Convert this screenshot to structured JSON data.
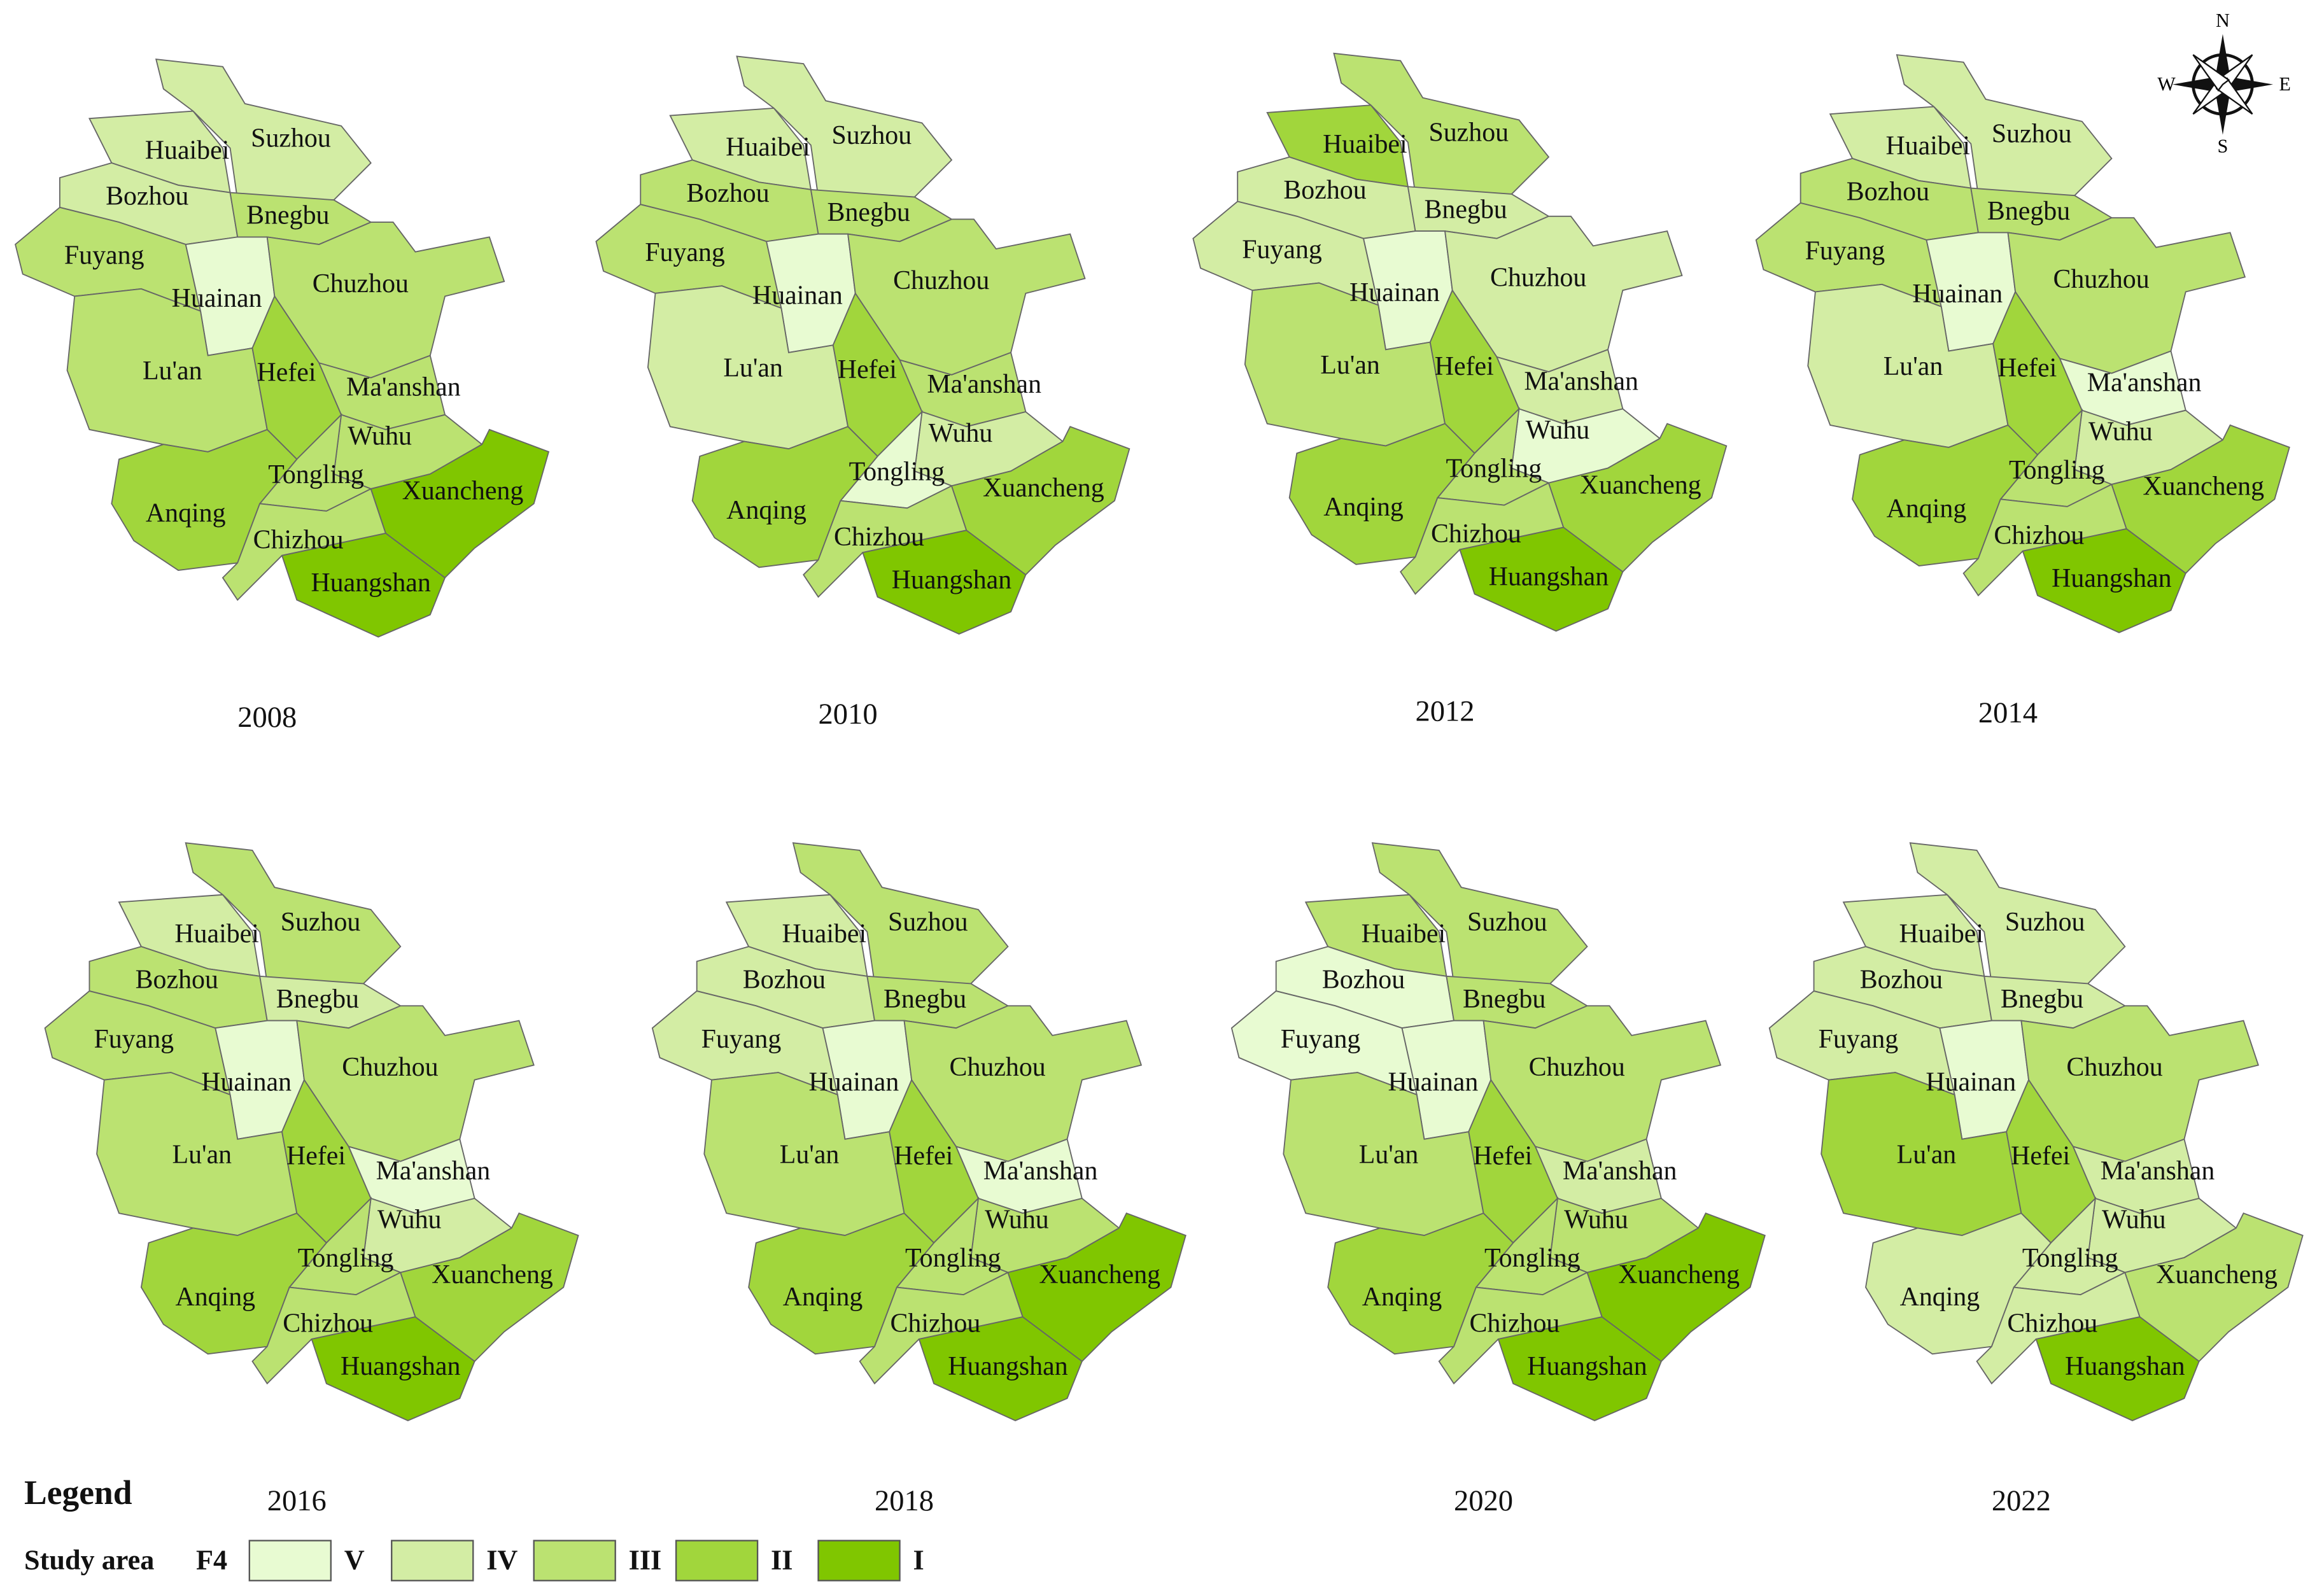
{
  "maps": [
    {
      "year": "2008",
      "regions": [
        {
          "name": "Huaibei",
          "class": "IV"
        },
        {
          "name": "Suzhou",
          "class": "IV"
        },
        {
          "name": "Bozhou",
          "class": "IV"
        },
        {
          "name": "Fuyang",
          "class": "III"
        },
        {
          "name": "Bnegbu",
          "class": "III"
        },
        {
          "name": "Huainan",
          "class": "V"
        },
        {
          "name": "Chuzhou",
          "class": "III"
        },
        {
          "name": "Lu'an",
          "class": "III"
        },
        {
          "name": "Hefei",
          "class": "II"
        },
        {
          "name": "Ma'anshan",
          "class": "III"
        },
        {
          "name": "Wuhu",
          "class": "III"
        },
        {
          "name": "Tongling",
          "class": "III"
        },
        {
          "name": "Anqing",
          "class": "II"
        },
        {
          "name": "Chizhou",
          "class": "III"
        },
        {
          "name": "Xuancheng",
          "class": "I"
        },
        {
          "name": "Huangshan",
          "class": "I"
        }
      ]
    },
    {
      "year": "2010",
      "regions": [
        {
          "name": "Huaibei",
          "class": "IV"
        },
        {
          "name": "Suzhou",
          "class": "IV"
        },
        {
          "name": "Bozhou",
          "class": "III"
        },
        {
          "name": "Fuyang",
          "class": "III"
        },
        {
          "name": "Bnegbu",
          "class": "III"
        },
        {
          "name": "Huainan",
          "class": "V"
        },
        {
          "name": "Chuzhou",
          "class": "III"
        },
        {
          "name": "Lu'an",
          "class": "IV"
        },
        {
          "name": "Hefei",
          "class": "II"
        },
        {
          "name": "Ma'anshan",
          "class": "III"
        },
        {
          "name": "Wuhu",
          "class": "IV"
        },
        {
          "name": "Tongling",
          "class": "V"
        },
        {
          "name": "Anqing",
          "class": "II"
        },
        {
          "name": "Chizhou",
          "class": "III"
        },
        {
          "name": "Xuancheng",
          "class": "II"
        },
        {
          "name": "Huangshan",
          "class": "I"
        }
      ]
    },
    {
      "year": "2012",
      "regions": [
        {
          "name": "Huaibei",
          "class": "II"
        },
        {
          "name": "Suzhou",
          "class": "III"
        },
        {
          "name": "Bozhou",
          "class": "IV"
        },
        {
          "name": "Fuyang",
          "class": "IV"
        },
        {
          "name": "Bnegbu",
          "class": "IV"
        },
        {
          "name": "Huainan",
          "class": "V"
        },
        {
          "name": "Chuzhou",
          "class": "IV"
        },
        {
          "name": "Lu'an",
          "class": "III"
        },
        {
          "name": "Hefei",
          "class": "II"
        },
        {
          "name": "Ma'anshan",
          "class": "IV"
        },
        {
          "name": "Wuhu",
          "class": "V"
        },
        {
          "name": "Tongling",
          "class": "III"
        },
        {
          "name": "Anqing",
          "class": "II"
        },
        {
          "name": "Chizhou",
          "class": "III"
        },
        {
          "name": "Xuancheng",
          "class": "II"
        },
        {
          "name": "Huangshan",
          "class": "I"
        }
      ]
    },
    {
      "year": "2014",
      "regions": [
        {
          "name": "Huaibei",
          "class": "IV"
        },
        {
          "name": "Suzhou",
          "class": "IV"
        },
        {
          "name": "Bozhou",
          "class": "III"
        },
        {
          "name": "Fuyang",
          "class": "III"
        },
        {
          "name": "Bnegbu",
          "class": "III"
        },
        {
          "name": "Huainan",
          "class": "V"
        },
        {
          "name": "Chuzhou",
          "class": "III"
        },
        {
          "name": "Lu'an",
          "class": "IV"
        },
        {
          "name": "Hefei",
          "class": "II"
        },
        {
          "name": "Ma'anshan",
          "class": "V"
        },
        {
          "name": "Wuhu",
          "class": "IV"
        },
        {
          "name": "Tongling",
          "class": "III"
        },
        {
          "name": "Anqing",
          "class": "II"
        },
        {
          "name": "Chizhou",
          "class": "III"
        },
        {
          "name": "Xuancheng",
          "class": "II"
        },
        {
          "name": "Huangshan",
          "class": "I"
        }
      ]
    },
    {
      "year": "2016",
      "regions": [
        {
          "name": "Huaibei",
          "class": "IV"
        },
        {
          "name": "Suzhou",
          "class": "III"
        },
        {
          "name": "Bozhou",
          "class": "III"
        },
        {
          "name": "Fuyang",
          "class": "III"
        },
        {
          "name": "Bnegbu",
          "class": "IV"
        },
        {
          "name": "Huainan",
          "class": "V"
        },
        {
          "name": "Chuzhou",
          "class": "III"
        },
        {
          "name": "Lu'an",
          "class": "III"
        },
        {
          "name": "Hefei",
          "class": "II"
        },
        {
          "name": "Ma'anshan",
          "class": "V"
        },
        {
          "name": "Wuhu",
          "class": "IV"
        },
        {
          "name": "Tongling",
          "class": "III"
        },
        {
          "name": "Anqing",
          "class": "II"
        },
        {
          "name": "Chizhou",
          "class": "III"
        },
        {
          "name": "Xuancheng",
          "class": "II"
        },
        {
          "name": "Huangshan",
          "class": "I"
        }
      ]
    },
    {
      "year": "2018",
      "regions": [
        {
          "name": "Huaibei",
          "class": "IV"
        },
        {
          "name": "Suzhou",
          "class": "III"
        },
        {
          "name": "Bozhou",
          "class": "IV"
        },
        {
          "name": "Fuyang",
          "class": "IV"
        },
        {
          "name": "Bnegbu",
          "class": "III"
        },
        {
          "name": "Huainan",
          "class": "V"
        },
        {
          "name": "Chuzhou",
          "class": "III"
        },
        {
          "name": "Lu'an",
          "class": "III"
        },
        {
          "name": "Hefei",
          "class": "II"
        },
        {
          "name": "Ma'anshan",
          "class": "V"
        },
        {
          "name": "Wuhu",
          "class": "III"
        },
        {
          "name": "Tongling",
          "class": "III"
        },
        {
          "name": "Anqing",
          "class": "II"
        },
        {
          "name": "Chizhou",
          "class": "III"
        },
        {
          "name": "Xuancheng",
          "class": "I"
        },
        {
          "name": "Huangshan",
          "class": "I"
        }
      ]
    },
    {
      "year": "2020",
      "regions": [
        {
          "name": "Huaibei",
          "class": "III"
        },
        {
          "name": "Suzhou",
          "class": "III"
        },
        {
          "name": "Bozhou",
          "class": "V"
        },
        {
          "name": "Fuyang",
          "class": "V"
        },
        {
          "name": "Bnegbu",
          "class": "III"
        },
        {
          "name": "Huainan",
          "class": "V"
        },
        {
          "name": "Chuzhou",
          "class": "III"
        },
        {
          "name": "Lu'an",
          "class": "III"
        },
        {
          "name": "Hefei",
          "class": "II"
        },
        {
          "name": "Ma'anshan",
          "class": "IV"
        },
        {
          "name": "Wuhu",
          "class": "III"
        },
        {
          "name": "Tongling",
          "class": "III"
        },
        {
          "name": "Anqing",
          "class": "II"
        },
        {
          "name": "Chizhou",
          "class": "III"
        },
        {
          "name": "Xuancheng",
          "class": "I"
        },
        {
          "name": "Huangshan",
          "class": "I"
        }
      ]
    },
    {
      "year": "2022",
      "regions": [
        {
          "name": "Huaibei",
          "class": "IV"
        },
        {
          "name": "Suzhou",
          "class": "IV"
        },
        {
          "name": "Bozhou",
          "class": "IV"
        },
        {
          "name": "Fuyang",
          "class": "IV"
        },
        {
          "name": "Bnegbu",
          "class": "IV"
        },
        {
          "name": "Huainan",
          "class": "V"
        },
        {
          "name": "Chuzhou",
          "class": "III"
        },
        {
          "name": "Lu'an",
          "class": "II"
        },
        {
          "name": "Hefei",
          "class": "II"
        },
        {
          "name": "Ma'anshan",
          "class": "IV"
        },
        {
          "name": "Wuhu",
          "class": "IV"
        },
        {
          "name": "Tongling",
          "class": "IV"
        },
        {
          "name": "Anqing",
          "class": "IV"
        },
        {
          "name": "Chizhou",
          "class": "IV"
        },
        {
          "name": "Xuancheng",
          "class": "III"
        },
        {
          "name": "Huangshan",
          "class": "I"
        }
      ]
    }
  ],
  "legend": {
    "title": "Legend",
    "layer": "Study area",
    "field": "F4",
    "classes": [
      {
        "label": "V",
        "color": "#e8fbd2"
      },
      {
        "label": "IV",
        "color": "#d3eda4"
      },
      {
        "label": "III",
        "color": "#bbe271"
      },
      {
        "label": "II",
        "color": "#a1d63c"
      },
      {
        "label": "I",
        "color": "#80c600"
      }
    ]
  },
  "compass": {
    "north": "N",
    "east": "E",
    "south": "S",
    "west": "W"
  }
}
